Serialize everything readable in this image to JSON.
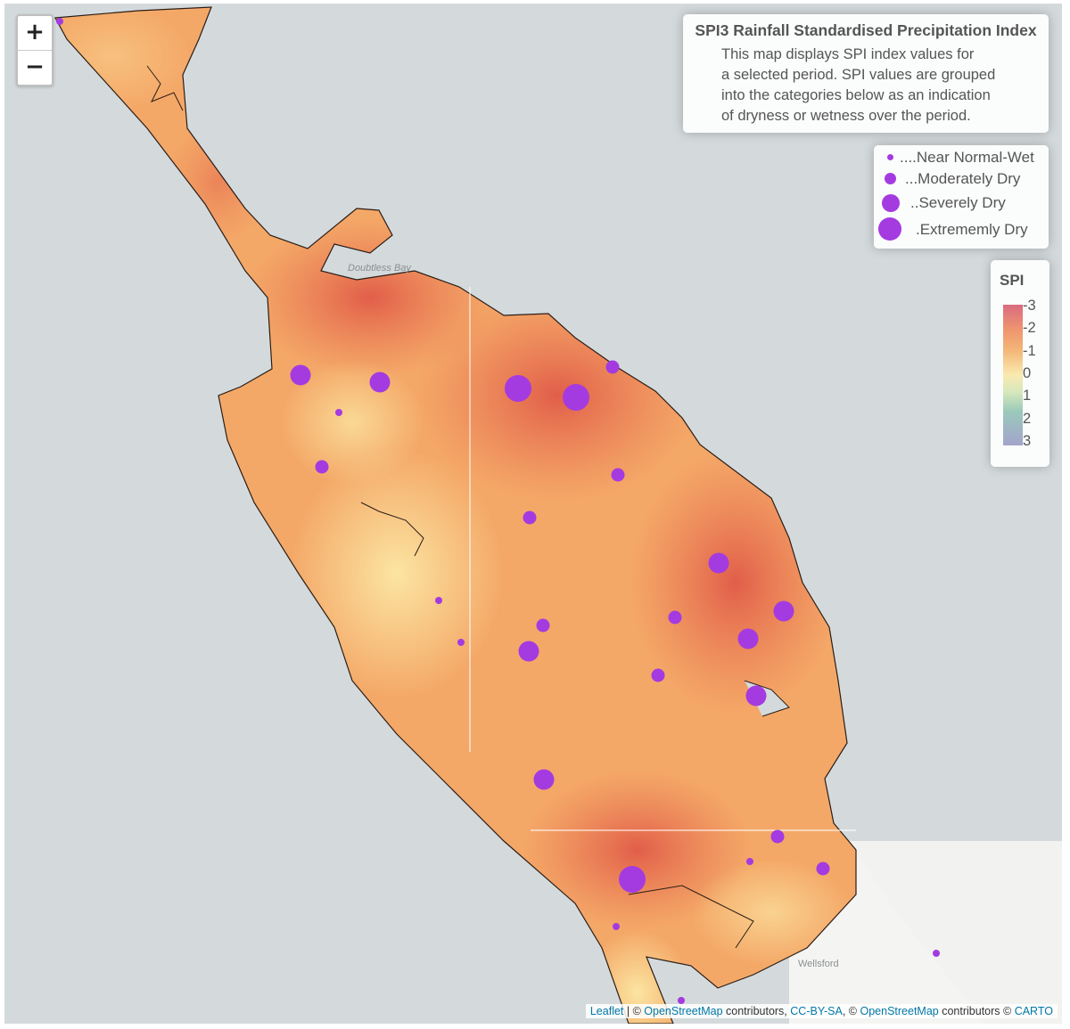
{
  "info": {
    "title": "SPI3 Rainfall Standardised Precipitation Index",
    "line1": "This map displays SPI index values for",
    "line2": "a selected period. SPI values are grouped",
    "line3": "into the categories below as an indication",
    "line4": "of dryness or wetness over the period."
  },
  "size_legend": [
    {
      "label": "....Near Normal-Wet"
    },
    {
      "label": "...Moderately Dry"
    },
    {
      "label": "..Severely Dry"
    },
    {
      "label": ".Extrememly Dry"
    }
  ],
  "spi_legend": {
    "title": "SPI",
    "ticks": [
      "-3",
      "-2",
      "-1",
      "0",
      "1",
      "2",
      "3"
    ]
  },
  "zoom": {
    "in": "+",
    "out": "−"
  },
  "place_labels": {
    "doubtless_bay": "Doubtless Bay",
    "wellsford": "Wellsford"
  },
  "attribution": {
    "leaflet": "Leaflet",
    "sep1": " | © ",
    "osm1": "OpenStreetMap",
    "contrib1": " contributors, ",
    "ccbysa": "CC-BY-SA",
    "sep2": ", © ",
    "osm2": "OpenStreetMap",
    "contrib2": " contributors © ",
    "carto": "CARTO"
  },
  "colors": {
    "marker": "#a43be0",
    "dry": "#e8704e",
    "normal": "#fbe3a0"
  },
  "stations": [
    {
      "category": "Near Normal-Wet"
    },
    {
      "category": "Severely Dry"
    },
    {
      "category": "Severely Dry"
    },
    {
      "category": "Near Normal-Wet"
    },
    {
      "category": "Moderately Dry"
    },
    {
      "category": "Extrememly Dry"
    },
    {
      "category": "Extrememly Dry"
    },
    {
      "category": "Moderately Dry"
    },
    {
      "category": "Moderately Dry"
    },
    {
      "category": "Moderately Dry"
    },
    {
      "category": "Severely Dry"
    },
    {
      "category": "Near Normal-Wet"
    },
    {
      "category": "Near Normal-Wet"
    },
    {
      "category": "Moderately Dry"
    },
    {
      "category": "Severely Dry"
    },
    {
      "category": "Moderately Dry"
    },
    {
      "category": "Severely Dry"
    },
    {
      "category": "Severely Dry"
    },
    {
      "category": "Moderately Dry"
    },
    {
      "category": "Severely Dry"
    },
    {
      "category": "Severely Dry"
    },
    {
      "category": "Moderately Dry"
    },
    {
      "category": "Extrememly Dry"
    },
    {
      "category": "Near Normal-Wet"
    },
    {
      "category": "Moderately Dry"
    },
    {
      "category": "Near Normal-Wet"
    },
    {
      "category": "Near Normal-Wet"
    },
    {
      "category": "Near Normal-Wet"
    }
  ]
}
